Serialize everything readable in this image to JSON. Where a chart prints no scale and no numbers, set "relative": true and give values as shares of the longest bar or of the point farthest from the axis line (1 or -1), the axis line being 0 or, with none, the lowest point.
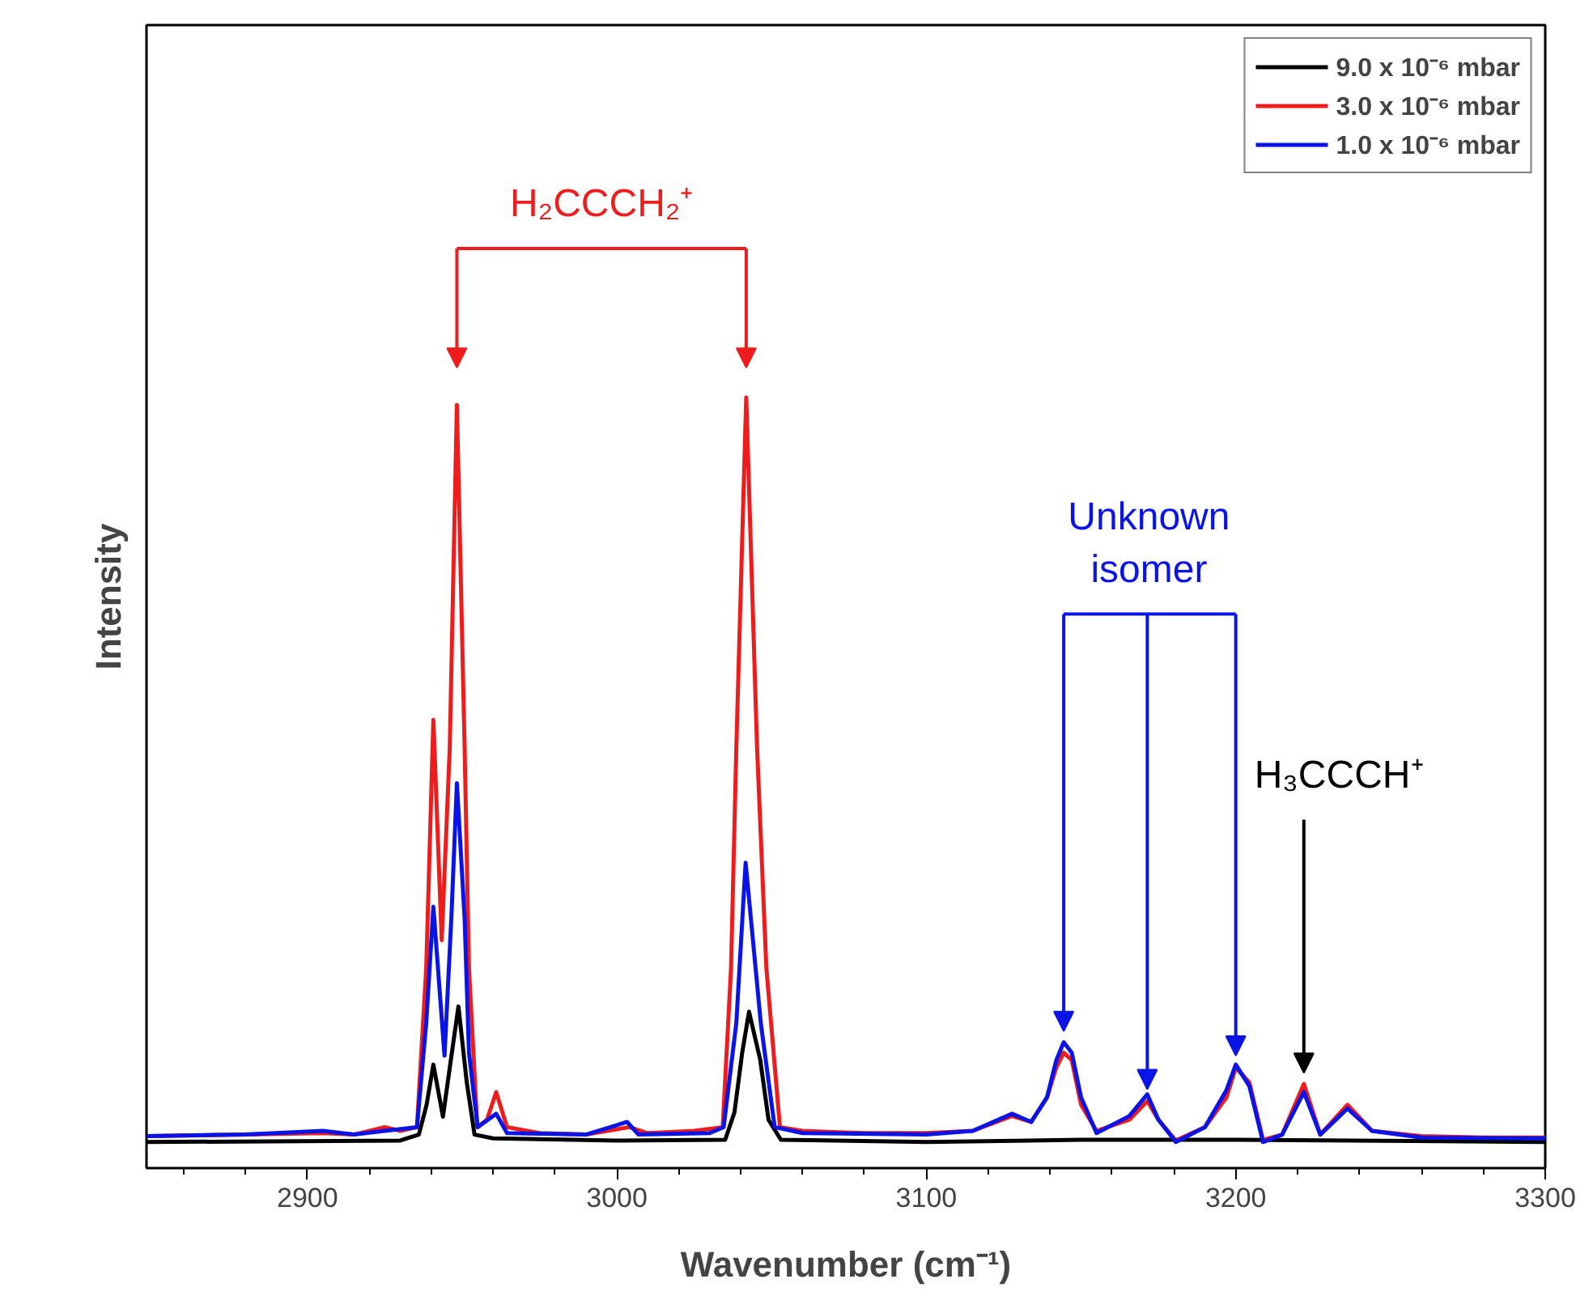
{
  "chart_data": {
    "type": "line",
    "relative": true,
    "xlabel": "Wavenumber (cm⁻¹)",
    "ylabel": "Intensity",
    "xlim": [
      2848,
      3300
    ],
    "xticks": [
      2900,
      3000,
      3100,
      3200,
      3300
    ],
    "grid": false,
    "legend": "top right",
    "marker": "none",
    "line_style": "solid",
    "series": [
      {
        "name": "9.0 x 10⁻⁶ mbar",
        "color": "#000000",
        "x": [
          2848,
          2930,
          2936,
          2938.5,
          2940.7,
          2943.8,
          2946,
          2948.8,
          2951.5,
          2954,
          2960,
          3000,
          3035,
          3038,
          3040.5,
          3042.7,
          3046.3,
          3049,
          3053,
          3100,
          3150,
          3200,
          3300
        ],
        "values": [
          0.0,
          0.002,
          0.01,
          0.05,
          0.104,
          0.034,
          0.1,
          0.182,
          0.08,
          0.01,
          0.005,
          0.002,
          0.003,
          0.04,
          0.12,
          0.175,
          0.111,
          0.03,
          0.003,
          0.0,
          0.003,
          0.003,
          0.0
        ]
      },
      {
        "name": "3.0 x 10⁻⁶ mbar",
        "color": "#ee1c1c",
        "x": [
          2848,
          2880,
          2905,
          2915,
          2925,
          2930,
          2935.4,
          2938.4,
          2940.7,
          2943.4,
          2946,
          2948.3,
          2950.8,
          2952.2,
          2954.9,
          2958,
          2961,
          2964.5,
          2975,
          2990,
          3004,
          3010,
          3025,
          3034.2,
          3036.9,
          3038.6,
          3041.8,
          3045.3,
          3048.3,
          3052.7,
          3060,
          3080,
          3100,
          3115,
          3127.7,
          3133.9,
          3139,
          3142,
          3144.4,
          3147,
          3150,
          3155,
          3165.6,
          3171.4,
          3175,
          3180.6,
          3190,
          3197,
          3200,
          3204.4,
          3208.8,
          3215,
          3222,
          3227.3,
          3236.1,
          3244,
          3260,
          3280,
          3300
        ],
        "values": [
          0.008,
          0.01,
          0.012,
          0.01,
          0.02,
          0.015,
          0.02,
          0.234,
          0.567,
          0.271,
          0.53,
          0.99,
          0.53,
          0.234,
          0.02,
          0.03,
          0.067,
          0.02,
          0.012,
          0.01,
          0.02,
          0.012,
          0.015,
          0.02,
          0.234,
          0.53,
          1.0,
          0.53,
          0.234,
          0.02,
          0.015,
          0.012,
          0.012,
          0.015,
          0.035,
          0.027,
          0.06,
          0.1,
          0.12,
          0.11,
          0.05,
          0.015,
          0.03,
          0.055,
          0.03,
          0.002,
          0.02,
          0.06,
          0.1,
          0.08,
          0.003,
          0.01,
          0.078,
          0.01,
          0.05,
          0.015,
          0.008,
          0.006,
          0.006
        ]
      },
      {
        "name": "1.0 x 10⁻⁶ mbar",
        "color": "#0a14e6",
        "x": [
          2848,
          2880,
          2905,
          2915,
          2925,
          2935.4,
          2938.4,
          2940.7,
          2944.3,
          2946.5,
          2948.3,
          2950.8,
          2952.2,
          2955,
          2961,
          2964.5,
          2990,
          3003.3,
          3007,
          3030,
          3034.5,
          3038.6,
          3041.6,
          3046.5,
          3051,
          3060,
          3100,
          3115,
          3127.7,
          3133.9,
          3139,
          3142,
          3144.4,
          3147,
          3150,
          3155,
          3165.6,
          3171.4,
          3175,
          3180.6,
          3190,
          3197,
          3200,
          3204.4,
          3208.8,
          3215,
          3222,
          3227.3,
          3236.1,
          3244,
          3260,
          3300
        ],
        "values": [
          0.008,
          0.01,
          0.015,
          0.01,
          0.015,
          0.02,
          0.16,
          0.316,
          0.116,
          0.3,
          0.482,
          0.3,
          0.12,
          0.02,
          0.038,
          0.012,
          0.01,
          0.027,
          0.01,
          0.012,
          0.02,
          0.16,
          0.375,
          0.16,
          0.02,
          0.012,
          0.01,
          0.015,
          0.038,
          0.027,
          0.06,
          0.11,
          0.134,
          0.12,
          0.06,
          0.012,
          0.035,
          0.064,
          0.03,
          0.0,
          0.02,
          0.07,
          0.104,
          0.075,
          0.0,
          0.01,
          0.067,
          0.01,
          0.045,
          0.015,
          0.006,
          0.005
        ]
      }
    ],
    "annotations": [
      "H₂CCCH₂⁺",
      "Unknown isomer",
      "H₃CCCH⁺"
    ]
  }
}
